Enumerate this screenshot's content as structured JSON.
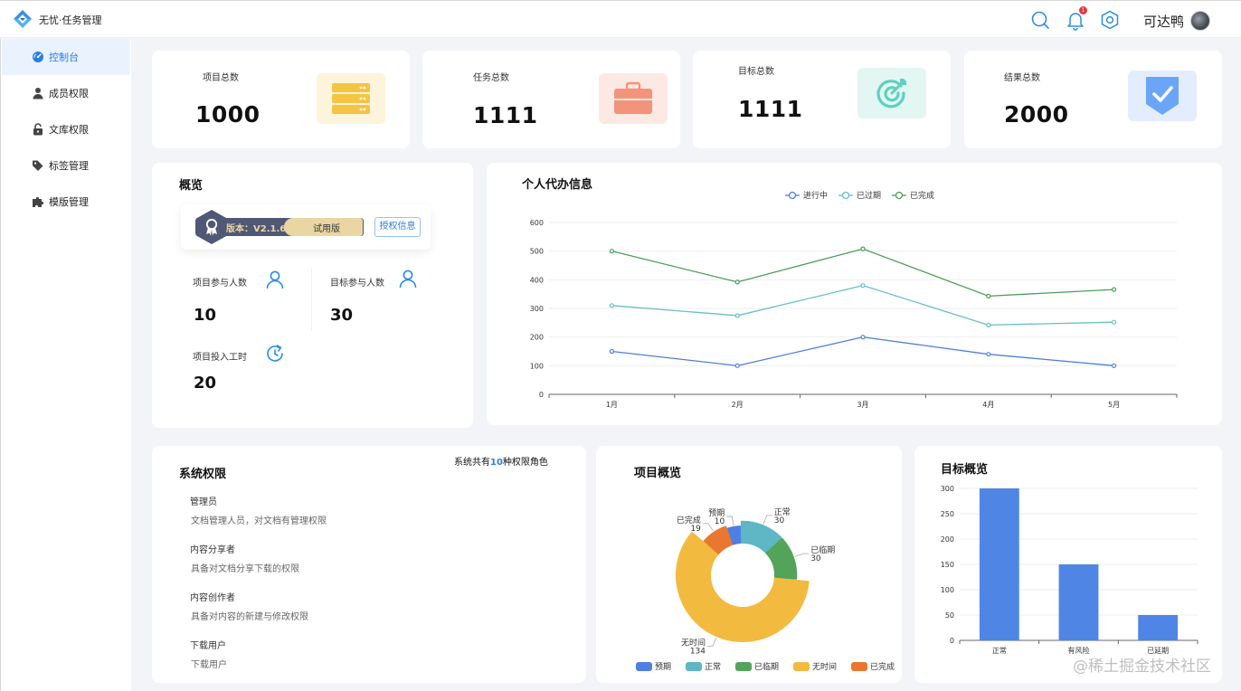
{
  "header": {
    "app_name": "无忧·任务管理",
    "user_name": "可达鸭",
    "notification_count": "1"
  },
  "sidebar": {
    "items": [
      {
        "label": "控制台",
        "icon": "dashboard-icon",
        "active": true
      },
      {
        "label": "成员权限",
        "icon": "user-icon"
      },
      {
        "label": "文库权限",
        "icon": "lock-icon"
      },
      {
        "label": "标签管理",
        "icon": "tag-icon"
      },
      {
        "label": "模版管理",
        "icon": "puzzle-icon"
      }
    ]
  },
  "stats": [
    {
      "label": "项目总数",
      "value": "1000",
      "icon": "server-icon",
      "color": "#f5c443"
    },
    {
      "label": "任务总数",
      "value": "1111",
      "icon": "briefcase-icon",
      "color": "#f3937b"
    },
    {
      "label": "目标总数",
      "value": "1111",
      "icon": "target-icon",
      "color": "#5fd0bf"
    },
    {
      "label": "结果总数",
      "value": "2000",
      "icon": "shield-check-icon",
      "color": "#6aa5f7"
    }
  ],
  "overview": {
    "title": "概览",
    "version_label": "版本：V2.1.6",
    "trial_label": "试用版",
    "auth_button": "授权信息",
    "metrics": [
      {
        "label": "项目参与人数",
        "value": "10",
        "icon": "person-icon"
      },
      {
        "label": "目标参与人数",
        "value": "30",
        "icon": "person-icon"
      },
      {
        "label": "项目投入工时",
        "value": "20",
        "icon": "refresh-clock-icon"
      }
    ]
  },
  "todo_chart": {
    "title": "个人代办信息",
    "chart_data": {
      "type": "line",
      "categories": [
        "1月",
        "2月",
        "3月",
        "4月",
        "5月"
      ],
      "ylim": [
        0,
        600
      ],
      "yticks": [
        0,
        100,
        200,
        300,
        400,
        500,
        600
      ],
      "legend_position": "top-center",
      "grid": true,
      "series": [
        {
          "name": "进行中",
          "values": [
            150,
            100,
            200,
            140,
            100
          ],
          "color": "#4f7fd9"
        },
        {
          "name": "已过期",
          "values": [
            310,
            275,
            380,
            242,
            252
          ],
          "color": "#67bfc2"
        },
        {
          "name": "已完成",
          "values": [
            500,
            392,
            508,
            343,
            366
          ],
          "color": "#4b9e58"
        }
      ]
    }
  },
  "permissions": {
    "title": "系统权限",
    "summary_prefix": "系统共有",
    "summary_count": "10",
    "summary_suffix": "种权限角色",
    "roles": [
      {
        "name": "管理员",
        "desc": "文档管理人员，对文档有管理权限"
      },
      {
        "name": "内容分享者",
        "desc": "具备对文档分享下载的权限"
      },
      {
        "name": "内容创作者",
        "desc": "具备对内容的新建与修改权限"
      },
      {
        "name": "下载用户",
        "desc": "下载用户"
      }
    ]
  },
  "project_chart": {
    "title": "项目概览",
    "chart_data": {
      "type": "pie",
      "legend_position": "bottom",
      "slices": [
        {
          "name": "预期",
          "value": 10,
          "color": "#4f7fe3"
        },
        {
          "name": "正常",
          "value": 30,
          "color": "#5fb6c4"
        },
        {
          "name": "已临期",
          "value": 30,
          "color": "#53a35b"
        },
        {
          "name": "无时间",
          "value": 134,
          "color": "#f2bb40"
        },
        {
          "name": "已完成",
          "value": 19,
          "color": "#e9772f"
        }
      ]
    }
  },
  "goal_chart": {
    "title": "目标概览",
    "chart_data": {
      "type": "bar",
      "categories": [
        "正常",
        "有风险",
        "已延期"
      ],
      "values": [
        300,
        150,
        50
      ],
      "ylim": [
        0,
        300
      ],
      "yticks": [
        0,
        50,
        100,
        150,
        200,
        250,
        300
      ],
      "color": "#4f86e6"
    }
  },
  "watermark": "@稀土掘金技术社区"
}
